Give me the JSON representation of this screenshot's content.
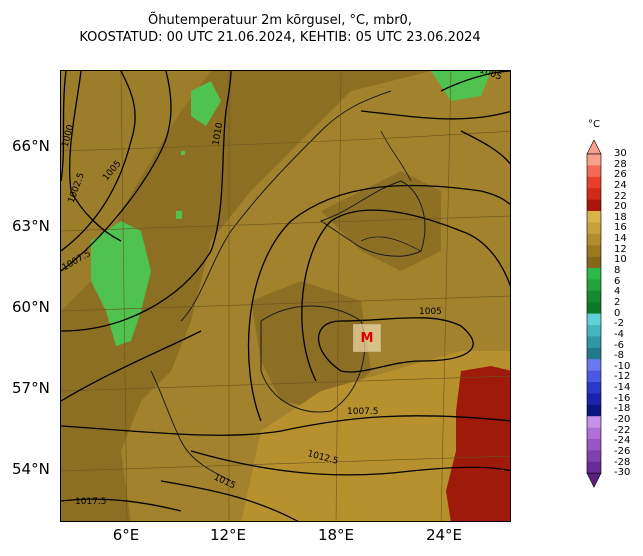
{
  "title": {
    "line1": "Õhutemperatuur 2m kõrgusel, °C, mbr0,",
    "line2": "KOOSTATUD: 00 UTC 21.06.2024, KEHTIB: 05 UTC 23.06.2024"
  },
  "lat_labels": [
    "66°N",
    "63°N",
    "60°N",
    "57°N",
    "54°N"
  ],
  "lon_labels": [
    "6°E",
    "12°E",
    "18°E",
    "24°E"
  ],
  "isobar_labels": [
    "1005",
    "1000",
    "1002.5",
    "1005",
    "1007.5",
    "1010",
    "1005",
    "1007.5",
    "1012.5",
    "1015",
    "1017.5"
  ],
  "low_marker": "M",
  "colorbar": {
    "unit": "°C",
    "ticks": [
      "30",
      "28",
      "26",
      "24",
      "22",
      "20",
      "18",
      "16",
      "14",
      "12",
      "10",
      "8",
      "6",
      "4",
      "2",
      "0",
      "-2",
      "-4",
      "-6",
      "-8",
      "-10",
      "-12",
      "-14",
      "-16",
      "-18",
      "-20",
      "-22",
      "-24",
      "-26",
      "-28",
      "-30"
    ],
    "colors": [
      "#f8a08a",
      "#f06a55",
      "#e8402c",
      "#d22a18",
      "#a81408",
      "#d9b24a",
      "#c9a13c",
      "#b38c2c",
      "#9a7820",
      "#86661a",
      "#2fb84a",
      "#23a33c",
      "#168a2e",
      "#0c7a26",
      "#5fd0d8",
      "#45b5c0",
      "#2f97a6",
      "#207a8a",
      "#6a78f0",
      "#4a58e0",
      "#2c38c8",
      "#1a24a8",
      "#0c1480",
      "#c890e8",
      "#b070d8",
      "#9a55c8",
      "#8040b0",
      "#6a2a98"
    ],
    "top_color": "#f8a08a",
    "bottom_color": "#5a2080"
  },
  "colors": {
    "land": "#9a7a2a",
    "sea": "#8a6c22",
    "mountain": "#4fc24f",
    "hot": "#9e1a0a"
  }
}
